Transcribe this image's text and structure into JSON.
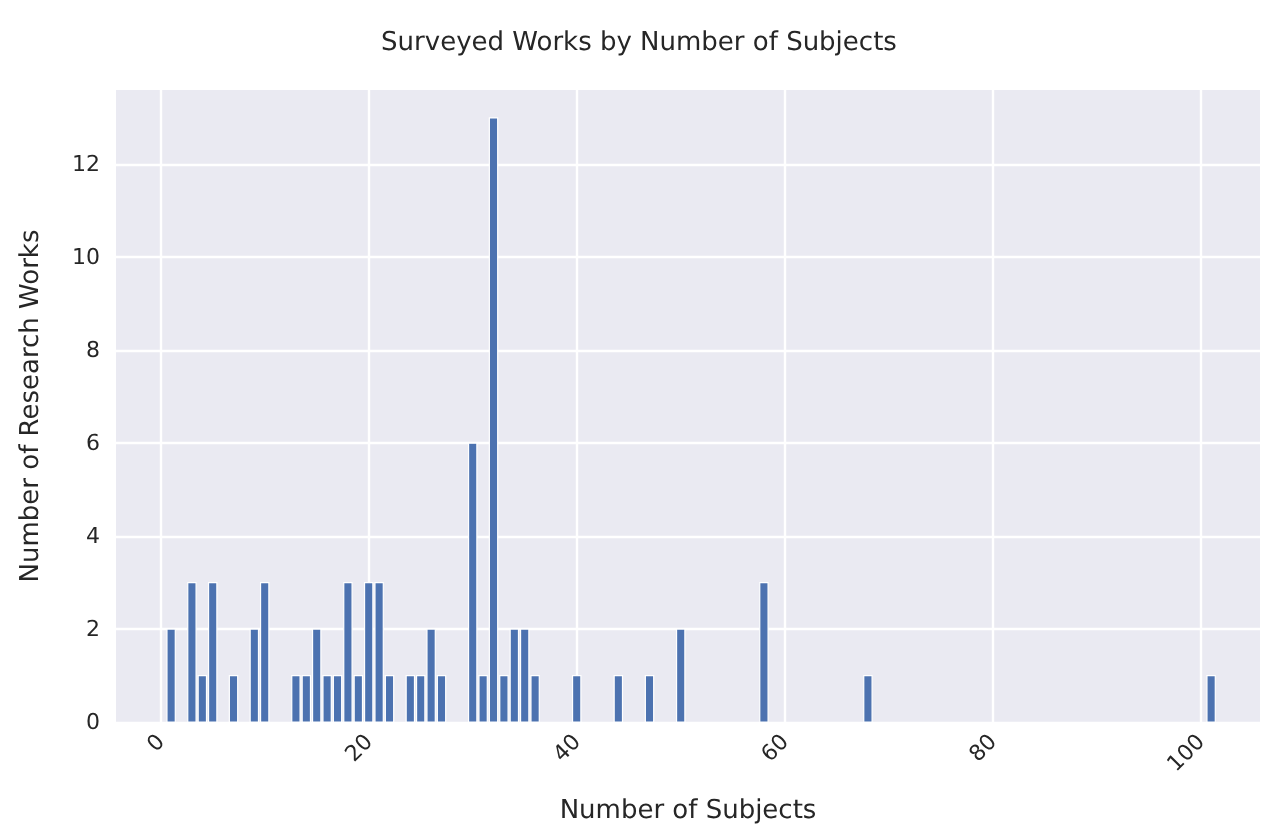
{
  "chart_data": {
    "type": "bar",
    "title": "Surveyed Works by Number of Subjects",
    "xlabel": "Number of Subjects",
    "ylabel": "Number of Research Works",
    "x": [
      1,
      3,
      4,
      5,
      7,
      9,
      10,
      13,
      14,
      15,
      16,
      17,
      18,
      19,
      20,
      21,
      22,
      24,
      25,
      26,
      27,
      30,
      31,
      32,
      33,
      34,
      35,
      36,
      40,
      44,
      47,
      50,
      58,
      68,
      101
    ],
    "values": [
      2,
      3,
      1,
      3,
      1,
      2,
      3,
      1,
      1,
      2,
      1,
      1,
      3,
      1,
      3,
      3,
      1,
      1,
      1,
      2,
      1,
      6,
      1,
      13,
      1,
      2,
      2,
      1,
      1,
      1,
      1,
      2,
      3,
      1,
      1
    ],
    "color": "#4c72b0",
    "xlim": [
      -4.3,
      105.7
    ],
    "xticks": [
      0,
      20,
      40,
      60,
      80,
      100
    ],
    "ylim": [
      0,
      13.6
    ],
    "yticks": [
      0,
      2,
      4,
      6,
      8,
      10,
      12
    ],
    "grid": true
  }
}
